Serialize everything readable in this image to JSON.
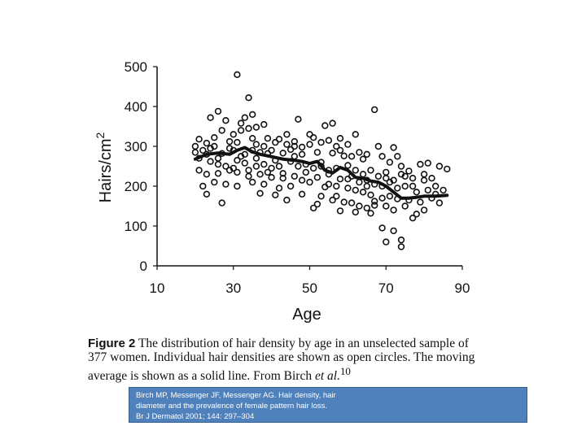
{
  "chart_data": {
    "type": "scatter",
    "title": "",
    "xlabel": "Age",
    "ylabel": "Hairs/cm2",
    "ylabel_base": "Hairs/cm",
    "ylabel_sup": "2",
    "xlim": [
      10,
      90
    ],
    "ylim": [
      0,
      500
    ],
    "xticks": [
      10,
      30,
      50,
      70,
      90
    ],
    "yticks": [
      0,
      100,
      200,
      300,
      400,
      500
    ],
    "series": [
      {
        "name": "Individual hair densities",
        "marker": "open circle",
        "points": [
          [
            31,
            480
          ],
          [
            34,
            422
          ],
          [
            67,
            392
          ],
          [
            26,
            388
          ],
          [
            24,
            372
          ],
          [
            35,
            380
          ],
          [
            28,
            365
          ],
          [
            33,
            372
          ],
          [
            32,
            358
          ],
          [
            38,
            355
          ],
          [
            47,
            368
          ],
          [
            56,
            358
          ],
          [
            54,
            352
          ],
          [
            62,
            330
          ],
          [
            44,
            330
          ],
          [
            50,
            330
          ],
          [
            51,
            322
          ],
          [
            58,
            320
          ],
          [
            21,
            318
          ],
          [
            25,
            322
          ],
          [
            29,
            312
          ],
          [
            36,
            305
          ],
          [
            41,
            310
          ],
          [
            46,
            312
          ],
          [
            53,
            310
          ],
          [
            55,
            315
          ],
          [
            57,
            300
          ],
          [
            60,
            305
          ],
          [
            68,
            300
          ],
          [
            72,
            297
          ],
          [
            20,
            300
          ],
          [
            22,
            290
          ],
          [
            23,
            280
          ],
          [
            27,
            282
          ],
          [
            30,
            290
          ],
          [
            33,
            280
          ],
          [
            35,
            290
          ],
          [
            37,
            285
          ],
          [
            39,
            282
          ],
          [
            40,
            290
          ],
          [
            43,
            283
          ],
          [
            45,
            292
          ],
          [
            48,
            280
          ],
          [
            52,
            285
          ],
          [
            56,
            283
          ],
          [
            59,
            276
          ],
          [
            63,
            285
          ],
          [
            65,
            280
          ],
          [
            69,
            275
          ],
          [
            71,
            260
          ],
          [
            74,
            250
          ],
          [
            76,
            238
          ],
          [
            79,
            255
          ],
          [
            81,
            258
          ],
          [
            84,
            250
          ],
          [
            86,
            243
          ],
          [
            21,
            270
          ],
          [
            24,
            262
          ],
          [
            26,
            255
          ],
          [
            28,
            250
          ],
          [
            31,
            265
          ],
          [
            33,
            258
          ],
          [
            36,
            250
          ],
          [
            38,
            255
          ],
          [
            40,
            245
          ],
          [
            42,
            250
          ],
          [
            45,
            262
          ],
          [
            47,
            250
          ],
          [
            49,
            255
          ],
          [
            51,
            245
          ],
          [
            53,
            250
          ],
          [
            55,
            240
          ],
          [
            57,
            245
          ],
          [
            60,
            252
          ],
          [
            62,
            240
          ],
          [
            64,
            230
          ],
          [
            66,
            240
          ],
          [
            68,
            225
          ],
          [
            70,
            220
          ],
          [
            72,
            215
          ],
          [
            74,
            230
          ],
          [
            77,
            220
          ],
          [
            80,
            215
          ],
          [
            82,
            220
          ],
          [
            21,
            240
          ],
          [
            23,
            230
          ],
          [
            26,
            232
          ],
          [
            29,
            240
          ],
          [
            31,
            235
          ],
          [
            34,
            225
          ],
          [
            37,
            230
          ],
          [
            40,
            222
          ],
          [
            43,
            232
          ],
          [
            46,
            225
          ],
          [
            49,
            235
          ],
          [
            52,
            222
          ],
          [
            55,
            230
          ],
          [
            58,
            218
          ],
          [
            61,
            225
          ],
          [
            63,
            210
          ],
          [
            65,
            215
          ],
          [
            67,
            205
          ],
          [
            69,
            200
          ],
          [
            71,
            210
          ],
          [
            73,
            195
          ],
          [
            75,
            200
          ],
          [
            78,
            185
          ],
          [
            81,
            190
          ],
          [
            83,
            180
          ],
          [
            22,
            200
          ],
          [
            25,
            210
          ],
          [
            28,
            205
          ],
          [
            31,
            200
          ],
          [
            35,
            210
          ],
          [
            38,
            205
          ],
          [
            42,
            195
          ],
          [
            45,
            200
          ],
          [
            50,
            210
          ],
          [
            54,
            198
          ],
          [
            57,
            200
          ],
          [
            60,
            195
          ],
          [
            62,
            190
          ],
          [
            64,
            185
          ],
          [
            66,
            178
          ],
          [
            69,
            170
          ],
          [
            71,
            175
          ],
          [
            73,
            168
          ],
          [
            76,
            165
          ],
          [
            79,
            160
          ],
          [
            82,
            170
          ],
          [
            84,
            158
          ],
          [
            23,
            180
          ],
          [
            27,
            158
          ],
          [
            37,
            182
          ],
          [
            41,
            178
          ],
          [
            48,
            180
          ],
          [
            53,
            175
          ],
          [
            56,
            165
          ],
          [
            59,
            160
          ],
          [
            61,
            158
          ],
          [
            63,
            150
          ],
          [
            65,
            145
          ],
          [
            67,
            152
          ],
          [
            70,
            150
          ],
          [
            72,
            140
          ],
          [
            75,
            150
          ],
          [
            78,
            130
          ],
          [
            80,
            140
          ],
          [
            51,
            145
          ],
          [
            58,
            138
          ],
          [
            62,
            135
          ],
          [
            66,
            132
          ],
          [
            69,
            95
          ],
          [
            72,
            88
          ],
          [
            74,
            65
          ],
          [
            70,
            60
          ],
          [
            74,
            48
          ],
          [
            77,
            120
          ],
          [
            52,
            155
          ],
          [
            44,
            165
          ],
          [
            67,
            162
          ],
          [
            30,
            330
          ],
          [
            32,
            340
          ],
          [
            34,
            345
          ],
          [
            36,
            348
          ],
          [
            27,
            340
          ],
          [
            31,
            310
          ],
          [
            35,
            320
          ],
          [
            38,
            300
          ],
          [
            25,
            300
          ],
          [
            23,
            308
          ],
          [
            29,
            295
          ],
          [
            39,
            320
          ],
          [
            42,
            318
          ],
          [
            44,
            305
          ],
          [
            46,
            300
          ],
          [
            48,
            298
          ],
          [
            50,
            305
          ],
          [
            58,
            290
          ],
          [
            61,
            275
          ],
          [
            64,
            268
          ],
          [
            73,
            275
          ],
          [
            75,
            225
          ],
          [
            80,
            230
          ],
          [
            83,
            200
          ],
          [
            60,
            218
          ],
          [
            55,
            205
          ],
          [
            48,
            215
          ],
          [
            43,
            220
          ],
          [
            39,
            235
          ],
          [
            34,
            240
          ],
          [
            30,
            245
          ],
          [
            26,
            270
          ],
          [
            20,
            285
          ],
          [
            57,
            175
          ],
          [
            65,
            200
          ],
          [
            70,
            235
          ],
          [
            77,
            200
          ],
          [
            85,
            190
          ],
          [
            53,
            260
          ],
          [
            46,
            275
          ],
          [
            41,
            265
          ],
          [
            36,
            270
          ],
          [
            32,
            275
          ],
          [
            24,
            295
          ]
        ]
      },
      {
        "name": "Moving average",
        "marker": "solid line",
        "points": [
          [
            20,
            268
          ],
          [
            23,
            280
          ],
          [
            26,
            283
          ],
          [
            29,
            280
          ],
          [
            31,
            290
          ],
          [
            33,
            297
          ],
          [
            35,
            286
          ],
          [
            37,
            280
          ],
          [
            40,
            274
          ],
          [
            43,
            268
          ],
          [
            46,
            265
          ],
          [
            48,
            262
          ],
          [
            50,
            257
          ],
          [
            52,
            262
          ],
          [
            54,
            240
          ],
          [
            56,
            233
          ],
          [
            58,
            247
          ],
          [
            60,
            240
          ],
          [
            62,
            222
          ],
          [
            64,
            220
          ],
          [
            66,
            213
          ],
          [
            68,
            210
          ],
          [
            70,
            200
          ],
          [
            72,
            185
          ],
          [
            74,
            170
          ],
          [
            76,
            170
          ],
          [
            78,
            172
          ],
          [
            80,
            175
          ],
          [
            83,
            175
          ],
          [
            86,
            177
          ]
        ]
      }
    ]
  },
  "caption": {
    "figure_label": "Figure 2",
    "text": "The distribution of hair density by age in an unselected sample of 377 women. Individual hair densities are shown as open circles. The moving average is shown as a solid line. From Birch",
    "citation": "et al.",
    "citation_sup": "10"
  },
  "reference": {
    "line1": "Birch MP, Messenger JF, Messenger AG. Hair density, hair",
    "line2": "diameter and the prevalence of female pattern hair loss.",
    "line3": "Br J Dermatol 2001; 144: 297–304"
  },
  "colors": {
    "marker_stroke": "#111111",
    "line": "#111111",
    "axis": "#111111",
    "ref_box_fill": "#4f81bd",
    "ref_box_border": "#385d8a",
    "ref_text": "#ffffff"
  }
}
